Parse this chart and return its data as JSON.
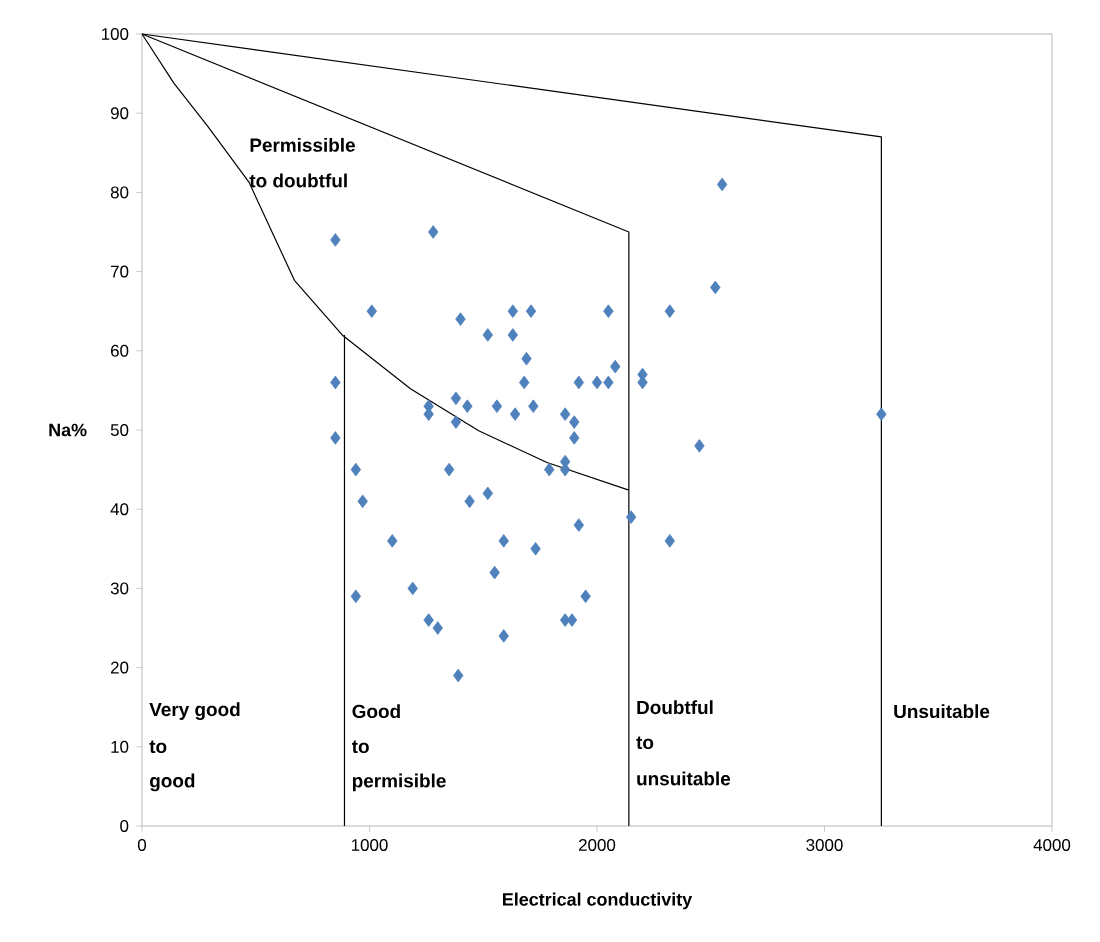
{
  "chart_data": {
    "type": "scatter",
    "xlabel": "Electrical conductivity",
    "ylabel": "Na%",
    "xlim": [
      0,
      4000
    ],
    "ylim": [
      0,
      100
    ],
    "xticks": [
      0,
      1000,
      2000,
      3000,
      4000
    ],
    "yticks": [
      0,
      10,
      20,
      30,
      40,
      50,
      60,
      70,
      80,
      90,
      100
    ],
    "grid": false,
    "series": [
      {
        "type": "scatter",
        "color": "#4f81bd",
        "marker": "diamond",
        "x": [
          850,
          1280,
          2550,
          2520,
          1010,
          1400,
          1630,
          1710,
          2050,
          2320,
          1520,
          1630,
          1690,
          1680,
          1920,
          2000,
          2050,
          2080,
          2200,
          2200,
          850,
          850,
          1380,
          1430,
          1260,
          1260,
          1380,
          1560,
          1640,
          1720,
          1860,
          1900,
          1900,
          2450,
          3250,
          940,
          1350,
          1790,
          1860,
          1860,
          970,
          1440,
          1520,
          2150,
          1920,
          1100,
          1590,
          2320,
          1730,
          1550,
          1190,
          940,
          1950,
          1260,
          1300,
          1590,
          1860,
          1890,
          1390
        ],
        "values": [
          74,
          75,
          81,
          68,
          65,
          64,
          65,
          65,
          65,
          65,
          62,
          62,
          59,
          56,
          56,
          56,
          56,
          58,
          57,
          56,
          56,
          49,
          54,
          53,
          53,
          52,
          51,
          53,
          52,
          53,
          52,
          51,
          49,
          48,
          52,
          45,
          45,
          45,
          46,
          45,
          41,
          41,
          42,
          39,
          38,
          36,
          36,
          36,
          35,
          32,
          30,
          29,
          29,
          26,
          25,
          24,
          26,
          26,
          19
        ]
      },
      {
        "type": "line",
        "color": "#000000",
        "marker": "none",
        "line_style": "solid",
        "x": [
          0,
          3250,
          3250
        ],
        "values": [
          100,
          87,
          0
        ]
      },
      {
        "type": "line",
        "color": "#000000",
        "marker": "none",
        "line_style": "solid",
        "x": [
          0,
          2140,
          2140
        ],
        "values": [
          100,
          75,
          0
        ]
      },
      {
        "type": "line",
        "color": "#000000",
        "marker": "none",
        "line_style": "solid",
        "x": [
          0,
          140,
          290,
          470,
          670,
          880,
          1180,
          1480,
          1780,
          2140
        ],
        "values": [
          100,
          93.8,
          88.3,
          81.3,
          68.9,
          62,
          55.2,
          49.9,
          45.9,
          42.4
        ]
      },
      {
        "type": "line",
        "color": "#000000",
        "marker": "none",
        "line_style": "solid",
        "x": [
          890,
          890
        ],
        "values": [
          62,
          0
        ]
      }
    ],
    "annotations": [
      "Permissible",
      "to doubtful",
      "Very good",
      "to",
      "good",
      "Good",
      "to",
      "permisible",
      "Doubtful",
      "to",
      "unsuitable",
      "Unsuitable"
    ]
  }
}
